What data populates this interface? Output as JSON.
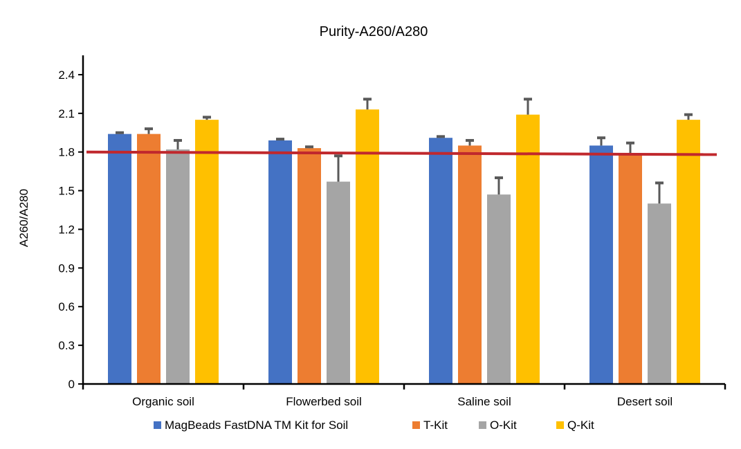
{
  "chart_data": {
    "type": "bar",
    "title": "Purity-A260/A280",
    "xlabel": "",
    "ylabel": "A260/A280",
    "ylim": [
      0,
      2.55
    ],
    "yticks": [
      0,
      0.3,
      0.6,
      0.9,
      1.2,
      1.5,
      1.8,
      2.1,
      2.4
    ],
    "ytick_labels": [
      "0",
      "0.3",
      "0.6",
      "0.9",
      "1.2",
      "1.5",
      "1.8",
      "2.1",
      "2.4"
    ],
    "grid": false,
    "legend_position": "bottom",
    "categories": [
      "Organic soil",
      "Flowerbed soil",
      "Saline soil",
      "Desert soil"
    ],
    "series": [
      {
        "name": "MagBeads FastDNA TM Kit for Soil",
        "color": "#4472c4",
        "values": [
          1.94,
          1.89,
          1.91,
          1.85
        ],
        "errors": [
          0.01,
          0.01,
          0.01,
          0.06
        ]
      },
      {
        "name": "T-Kit",
        "color": "#ed7d31",
        "values": [
          1.94,
          1.83,
          1.85,
          1.78
        ],
        "errors": [
          0.04,
          0.01,
          0.04,
          0.09
        ]
      },
      {
        "name": "O-Kit",
        "color": "#a5a5a5",
        "values": [
          1.82,
          1.57,
          1.47,
          1.4
        ],
        "errors": [
          0.07,
          0.2,
          0.13,
          0.16
        ]
      },
      {
        "name": "Q-Kit",
        "color": "#ffc000",
        "values": [
          2.05,
          2.13,
          2.09,
          2.05
        ],
        "errors": [
          0.02,
          0.08,
          0.12,
          0.04
        ]
      }
    ],
    "reference_line": {
      "y_start": 1.8,
      "y_end": 1.78,
      "color": "#c0282d"
    },
    "error_bar_color": "#595959"
  }
}
